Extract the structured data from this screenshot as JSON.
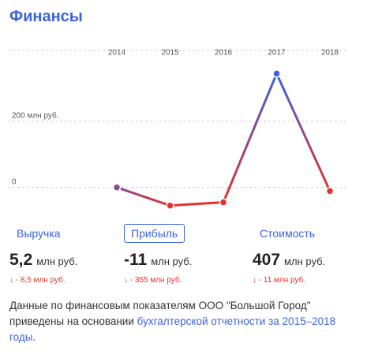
{
  "header": {
    "title": "Финансы"
  },
  "chart_data": {
    "type": "line",
    "categories": [
      "2014",
      "2015",
      "2016",
      "2017",
      "2018"
    ],
    "values": [
      0,
      -55,
      -45,
      345,
      -11
    ],
    "color": "#3d63dd",
    "negative_color": "#e8302a",
    "zero_color": "#8a4a9a",
    "ylim": [
      -70,
      420
    ],
    "yticks": [
      0,
      {
        "value": 200,
        "label": "200 млн руб."
      }
    ],
    "grid": true
  },
  "metrics": [
    {
      "label": "Выручка",
      "value": "5,2",
      "unit": "млн руб.",
      "change": "↓ - 8,5 млн руб."
    },
    {
      "label": "Прибыль",
      "value": "-11",
      "unit": "млн руб.",
      "change": "↓ - 355 млн руб."
    },
    {
      "label": "Стоимость",
      "value": "407",
      "unit": "млн руб.",
      "change": "↓ - 11 млн руб."
    }
  ],
  "footnote": {
    "text": "Данные по финансовым показателям ООО \"Большой Город\" приведены на основании ",
    "link": "бухгалтерской отчетности за 2015–2018 годы",
    "end": "."
  }
}
